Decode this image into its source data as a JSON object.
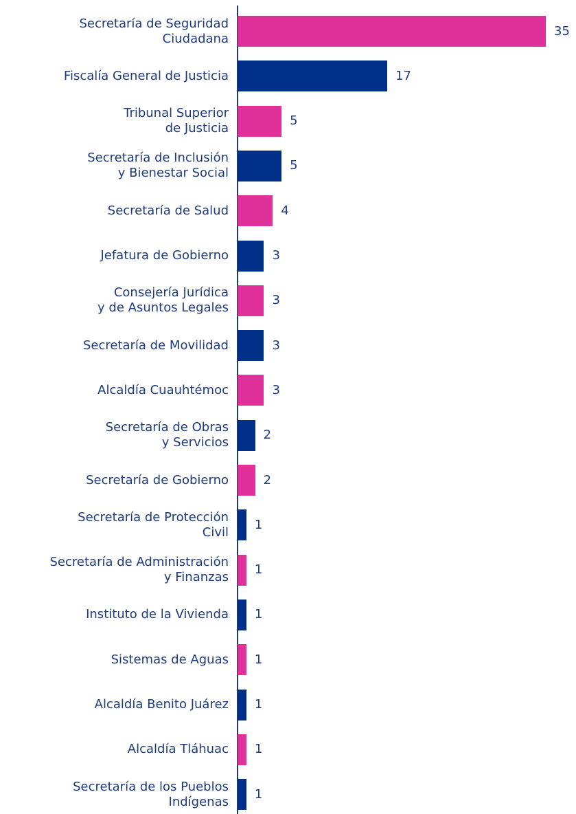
{
  "chart_data": {
    "type": "bar",
    "orientation": "horizontal",
    "categories": [
      "Secretaría de Seguridad\nCiudadana",
      "Fiscalía General de Justicia",
      "Tribunal Superior\nde Justicia",
      "Secretaría de Inclusión\ny Bienestar Social",
      "Secretaría de Salud",
      "Jefatura de Gobierno",
      "Consejería Jurídica\ny de Asuntos Legales",
      "Secretaría de Movilidad",
      "Alcaldía Cuauhtémoc",
      "Secretaría de Obras\ny Servicios",
      "Secretaría de Gobierno",
      "Secretaría de Protección\nCivil",
      "Secretaría de Administración\ny Finanzas",
      "Instituto de la Vivienda",
      "Sistemas de Aguas",
      "Alcaldía Benito Juárez",
      "Alcaldía Tláhuac",
      "Secretaría de los Pueblos\nIndígenas"
    ],
    "values": [
      35,
      17,
      5,
      5,
      4,
      3,
      3,
      3,
      3,
      2,
      2,
      1,
      1,
      1,
      1,
      1,
      1,
      1
    ],
    "colors": [
      "#e0309a",
      "#003087",
      "#e0309a",
      "#003087",
      "#e0309a",
      "#003087",
      "#e0309a",
      "#003087",
      "#e0309a",
      "#003087",
      "#e0309a",
      "#003087",
      "#e0309a",
      "#003087",
      "#e0309a",
      "#003087",
      "#e0309a",
      "#003087"
    ],
    "xlim": [
      0,
      35
    ]
  }
}
